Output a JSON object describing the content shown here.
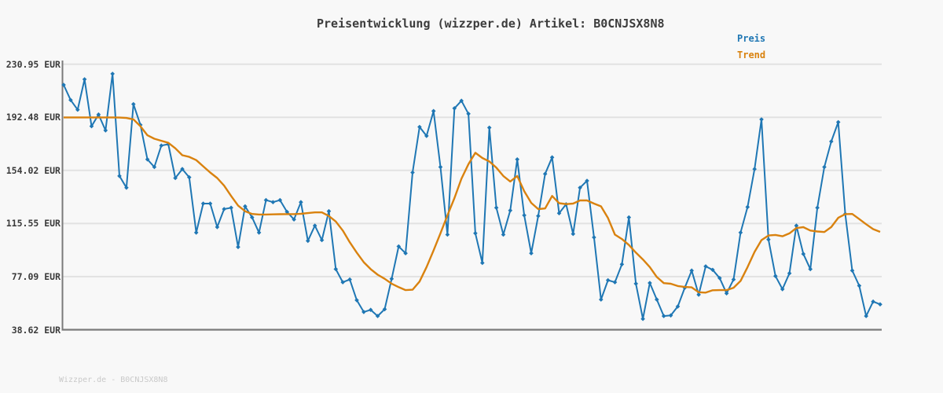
{
  "title": "Preisentwicklung (wizzper.de) Artikel: B0CNJSX8N8",
  "watermark": "Wizzper.de - B0CNJSX8N8",
  "legend": {
    "position": "top-right",
    "items": [
      {
        "label": "Preis",
        "color": "#1f77b4"
      },
      {
        "label": "Trend",
        "color": "#d9820f"
      }
    ]
  },
  "colors": {
    "background": "#f8f8f8",
    "grid": "#e2e2e2",
    "axis": "#7a7a7a",
    "title_text": "#3c3c3c",
    "tick_text": "#3a3a3a",
    "watermark_text": "#c9c9c9",
    "preis_line": "#1f77b4",
    "trend_line": "#d9820f"
  },
  "chart_data": {
    "type": "line",
    "title": "Preisentwicklung (wizzper.de) Artikel: B0CNJSX8N8",
    "xlabel": "",
    "ylabel": "",
    "x_axis": {
      "tick_labels_visible": false,
      "num_points": 118
    },
    "y_axis": {
      "unit": "EUR",
      "tick_labels": [
        "230.95 EUR",
        "192.48 EUR",
        "154.02 EUR",
        "115.55 EUR",
        "77.09 EUR",
        "38.62 EUR"
      ],
      "tick_values": [
        230.95,
        192.48,
        154.02,
        115.55,
        77.09,
        38.62
      ]
    },
    "ylim": [
      38.62,
      230.95
    ],
    "grid": true,
    "legend_position": "top-right",
    "series": [
      {
        "name": "Preis",
        "color": "#1f77b4",
        "marker": "diamond",
        "values": [
          216,
          205,
          198,
          220,
          186,
          194.5,
          183,
          224,
          150,
          141.5,
          202,
          187,
          162,
          156.5,
          172,
          173,
          148.5,
          155,
          149,
          109,
          130,
          130,
          113,
          126,
          127,
          98.5,
          128,
          120,
          109,
          132.5,
          131,
          132.5,
          124,
          118.5,
          131,
          103,
          114,
          103.5,
          124.5,
          82.5,
          73,
          75,
          60,
          51.5,
          53,
          48.5,
          53.5,
          75.5,
          99,
          94,
          152.5,
          185.5,
          179,
          197,
          156.5,
          107.5,
          199,
          204.5,
          195,
          108.5,
          87,
          185,
          127,
          107.5,
          125,
          162,
          121.5,
          94,
          121,
          151.5,
          163.5,
          123,
          129.5,
          108,
          141.5,
          146.5,
          105.5,
          60.5,
          74.5,
          73,
          86,
          120,
          72,
          46.5,
          72.5,
          60.5,
          48.5,
          49,
          55.5,
          69,
          81.5,
          64,
          84.5,
          82,
          76,
          65,
          75,
          109,
          127.5,
          155,
          191,
          104,
          77.5,
          68,
          79.5,
          114,
          93.5,
          82.5,
          127,
          156.5,
          175,
          189,
          122.5,
          81.5,
          70.5,
          48.5,
          59,
          57
        ]
      },
      {
        "name": "Trend",
        "color": "#d9820f",
        "marker": "none",
        "values": [
          192.4,
          192.4,
          192.4,
          192.4,
          192.4,
          192.4,
          192.4,
          192.4,
          192.3,
          192,
          191,
          186,
          179.5,
          177,
          175.5,
          174,
          170,
          165,
          163.8,
          161.5,
          157,
          152.5,
          148.5,
          143,
          135.5,
          128.5,
          124.5,
          122.5,
          122.1,
          122.1,
          122.2,
          122.3,
          122.4,
          122.4,
          122.6,
          123.1,
          123.6,
          123.6,
          121,
          117,
          110.5,
          102,
          94.5,
          87.5,
          82.5,
          78.5,
          75.5,
          72,
          69.5,
          67.3,
          67.6,
          73.5,
          84,
          96,
          108.5,
          121.5,
          134,
          148,
          158.5,
          166.8,
          163,
          160.5,
          156,
          150,
          146,
          150,
          139,
          130.5,
          126,
          126.5,
          135.5,
          130.3,
          129.6,
          130,
          132.3,
          132.3,
          130,
          128,
          119.5,
          107.5,
          104.3,
          100,
          94.5,
          89.5,
          84,
          76.8,
          72.4,
          71.9,
          70.3,
          69.6,
          69.3,
          65.8,
          65.5,
          67.2,
          67.3,
          67.3,
          69,
          74,
          84,
          95,
          103.5,
          106.9,
          107.3,
          106.3,
          108.4,
          112.3,
          112.9,
          110.5,
          109.8,
          109.4,
          113,
          119.7,
          122.4,
          122.5,
          118.8,
          115,
          111.5,
          109.5
        ]
      }
    ]
  }
}
